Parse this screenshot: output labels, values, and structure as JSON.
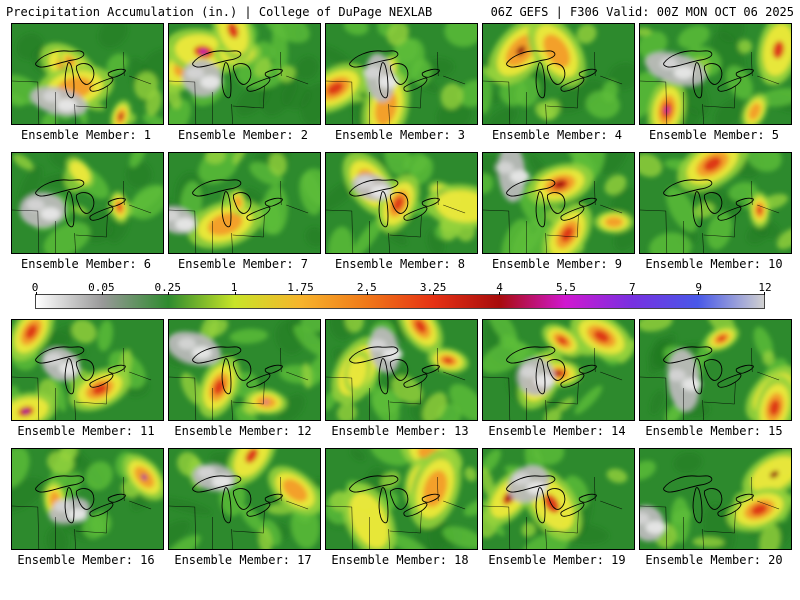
{
  "header": {
    "left": "Precipitation Accumulation (in.) | College of DuPage NEXLAB",
    "right": "06Z GEFS | F306 Valid: 00Z MON OCT 06 2025"
  },
  "colorbar": {
    "labels": [
      "0",
      "0.05",
      "0.25",
      "1",
      "1.75",
      "2.5",
      "3.25",
      "4",
      "5.5",
      "7",
      "9",
      "12"
    ],
    "colors": [
      "#ffffff",
      "#999999",
      "#2e8b2e",
      "#c8e428",
      "#f7b42c",
      "#f07818",
      "#e63214",
      "#a80c0c",
      "#d018d0",
      "#7830e0",
      "#4858e8",
      "#d0d0d0"
    ]
  },
  "map_palette": {
    "base": "#2d8a2d",
    "dark_green": "#1f7a1f",
    "light_green": "#5dbe3a",
    "bright_green": "#95d23c",
    "yellow": "#ece83a",
    "orange": "#f39c2a",
    "red": "#dc3218",
    "dark_red": "#8f0f0f",
    "purple": "#b818c8",
    "gray": "#b9b9b9",
    "gray_light": "#d6d6d6",
    "white": "#e9e9e9",
    "outline": "#000000"
  },
  "panels": [
    {
      "label": "Ensemble Member: 1"
    },
    {
      "label": "Ensemble Member: 2"
    },
    {
      "label": "Ensemble Member: 3"
    },
    {
      "label": "Ensemble Member: 4"
    },
    {
      "label": "Ensemble Member: 5"
    },
    {
      "label": "Ensemble Member: 6"
    },
    {
      "label": "Ensemble Member: 7"
    },
    {
      "label": "Ensemble Member: 8"
    },
    {
      "label": "Ensemble Member: 9"
    },
    {
      "label": "Ensemble Member: 10"
    },
    {
      "label": "Ensemble Member: 11"
    },
    {
      "label": "Ensemble Member: 12"
    },
    {
      "label": "Ensemble Member: 13"
    },
    {
      "label": "Ensemble Member: 14"
    },
    {
      "label": "Ensemble Member: 15"
    },
    {
      "label": "Ensemble Member: 16"
    },
    {
      "label": "Ensemble Member: 17"
    },
    {
      "label": "Ensemble Member: 18"
    },
    {
      "label": "Ensemble Member: 19"
    },
    {
      "label": "Ensemble Member: 20"
    }
  ]
}
